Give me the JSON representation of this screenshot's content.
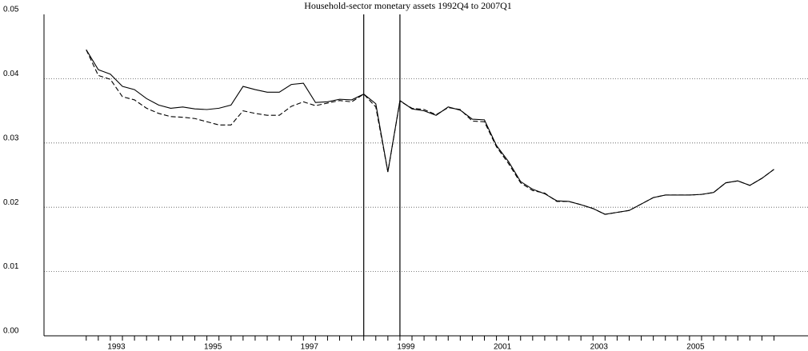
{
  "chart_data": {
    "type": "line",
    "title": "Household-sector monetary assets 1992Q4 to 2007Q1",
    "x": [
      1992.875,
      1993.125,
      1993.375,
      1993.625,
      1993.875,
      1994.125,
      1994.375,
      1994.625,
      1994.875,
      1995.125,
      1995.375,
      1995.625,
      1995.875,
      1996.125,
      1996.375,
      1996.625,
      1996.875,
      1997.125,
      1997.375,
      1997.625,
      1997.875,
      1998.125,
      1998.375,
      1998.625,
      1998.875,
      1999.125,
      1999.375,
      1999.625,
      1999.875,
      2000.125,
      2000.375,
      2000.625,
      2000.875,
      2001.125,
      2001.375,
      2001.625,
      2001.875,
      2002.125,
      2002.375,
      2002.625,
      2002.875,
      2003.125,
      2003.375,
      2003.625,
      2003.875,
      2004.125,
      2004.375,
      2004.625,
      2004.875,
      2005.125,
      2005.375,
      2005.625,
      2005.875,
      2006.125,
      2006.375,
      2006.625,
      2006.875,
      2007.125
    ],
    "series": [
      {
        "color": "#000000",
        "dash": false,
        "values": [
          0.0445,
          0.0414,
          0.0407,
          0.0388,
          0.0383,
          0.0369,
          0.0359,
          0.0354,
          0.0356,
          0.0353,
          0.0352,
          0.0354,
          0.0359,
          0.0388,
          0.0383,
          0.0379,
          0.0379,
          0.0391,
          0.0393,
          0.0363,
          0.0364,
          0.0368,
          0.0367,
          0.0376,
          0.0361,
          0.0255,
          0.0366,
          0.0353,
          0.035,
          0.0343,
          0.0356,
          0.0351,
          0.0337,
          0.0336,
          0.0296,
          0.0271,
          0.024,
          0.0228,
          0.0221,
          0.021,
          0.0209,
          0.0204,
          0.0198,
          0.0189,
          0.0192,
          0.0195,
          0.0205,
          0.0215,
          0.0219,
          0.0219,
          0.0219,
          0.022,
          0.0223,
          0.0238,
          0.0241,
          0.0234,
          0.0245,
          0.0259
        ]
      },
      {
        "color": "#000000",
        "dash": true,
        "values": [
          0.0445,
          0.0405,
          0.0399,
          0.0372,
          0.0367,
          0.0354,
          0.0346,
          0.0341,
          0.034,
          0.0338,
          0.0333,
          0.0328,
          0.0328,
          0.035,
          0.0346,
          0.0343,
          0.0343,
          0.0357,
          0.0364,
          0.0358,
          0.0362,
          0.0366,
          0.0364,
          0.0376,
          0.0356,
          0.0255,
          0.0365,
          0.0354,
          0.0352,
          0.0344,
          0.0355,
          0.0352,
          0.0334,
          0.0333,
          0.0294,
          0.0268,
          0.0238,
          0.0226,
          0.0222,
          0.0209,
          0.0209,
          0.0204,
          0.0198,
          0.0189,
          0.0192,
          0.0195,
          0.0205,
          0.0215,
          0.0219,
          0.0219,
          0.0219,
          0.022,
          0.0223,
          0.0238,
          0.0241,
          0.0234,
          0.0245,
          0.0259
        ]
      }
    ],
    "vlines": [
      1998.625,
      1999.375
    ],
    "xlim": [
      1992.0,
      2007.83
    ],
    "xticks": [
      {
        "value": 1993.5,
        "label": "1993"
      },
      {
        "value": 1995.5,
        "label": "1995"
      },
      {
        "value": 1997.5,
        "label": "1997"
      },
      {
        "value": 1999.5,
        "label": "1999"
      },
      {
        "value": 2001.5,
        "label": "2001"
      },
      {
        "value": 2003.5,
        "label": "2003"
      },
      {
        "value": 2005.5,
        "label": "2005"
      }
    ],
    "ylim": [
      0,
      0.05
    ],
    "yticks": [
      {
        "value": 0,
        "label": "0.00"
      },
      0.01,
      0.02,
      0.03,
      0.04,
      0.05
    ],
    "grid": true
  }
}
